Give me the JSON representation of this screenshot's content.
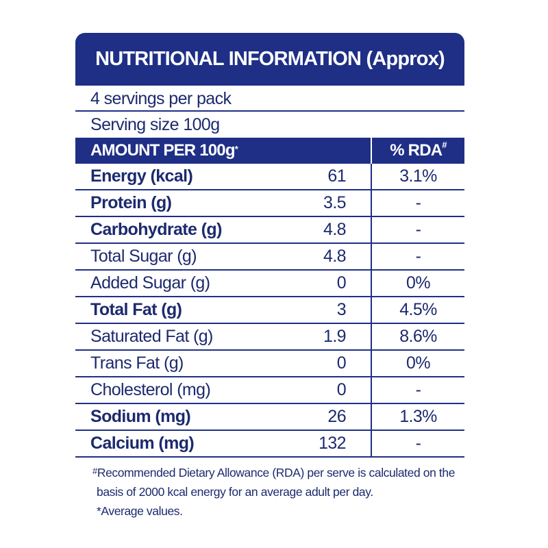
{
  "title": "NUTRITIONAL INFORMATION  (Approx)",
  "servings_per_pack": "4 servings per pack",
  "serving_size": "Serving size 100g",
  "columns": {
    "amount": "AMOUNT PER 100g",
    "amount_mark": "*",
    "rda": "% RDA",
    "rda_mark": "#"
  },
  "rows": [
    {
      "name": "Energy (kcal)",
      "value": "61",
      "rda": "3.1%",
      "bold": true
    },
    {
      "name": "Protein (g)",
      "value": "3.5",
      "rda": "-",
      "bold": true
    },
    {
      "name": "Carbohydrate (g)",
      "value": "4.8",
      "rda": "-",
      "bold": true
    },
    {
      "name": "Total Sugar (g)",
      "value": "4.8",
      "rda": "-",
      "bold": false
    },
    {
      "name": "Added Sugar (g)",
      "value": "0",
      "rda": "0%",
      "bold": false
    },
    {
      "name": "Total Fat (g)",
      "value": "3",
      "rda": "4.5%",
      "bold": true
    },
    {
      "name": "Saturated Fat (g)",
      "value": "1.9",
      "rda": "8.6%",
      "bold": false
    },
    {
      "name": "Trans Fat (g)",
      "value": "0",
      "rda": "0%",
      "bold": false
    },
    {
      "name": "Cholesterol (mg)",
      "value": "0",
      "rda": "-",
      "bold": false
    },
    {
      "name": "Sodium (mg)",
      "value": "26",
      "rda": "1.3%",
      "bold": true
    },
    {
      "name": "Calcium (mg)",
      "value": "132",
      "rda": "-",
      "bold": true
    }
  ],
  "footnotes": {
    "rda_mark": "#",
    "rda_line1": "Recommended Dietary Allowance (RDA) per serve is calculated on the",
    "rda_line2": "basis of 2000 kcal energy for an average adult per day.",
    "average": "*Average values."
  },
  "colors": {
    "navy": "#1f2f86",
    "text": "#1c2a6e"
  }
}
